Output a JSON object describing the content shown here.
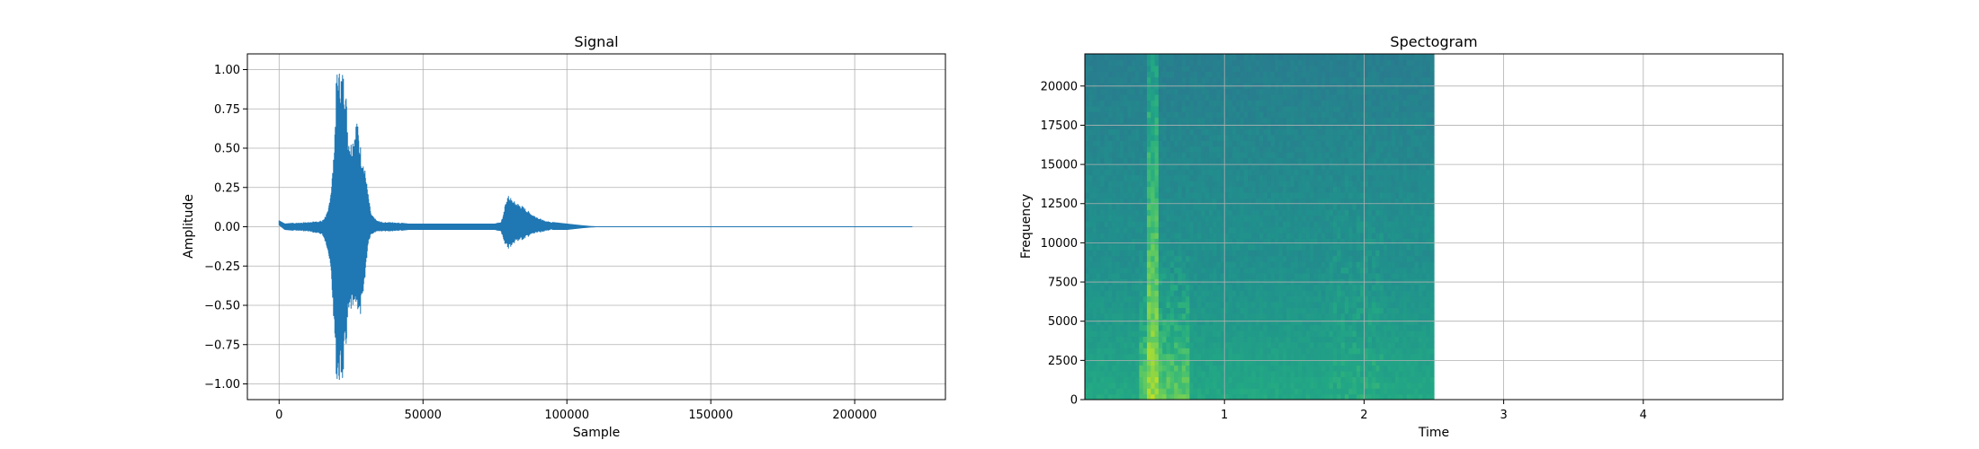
{
  "chart_data": [
    {
      "type": "line",
      "title": "Signal",
      "xlabel": "Sample",
      "ylabel": "Amplitude",
      "xlim": [
        -11025,
        231525
      ],
      "ylim": [
        -1.1,
        1.1
      ],
      "x_ticks": [
        0,
        50000,
        100000,
        150000,
        200000
      ],
      "x_tick_labels": [
        "0",
        "50000",
        "100000",
        "150000",
        "200000"
      ],
      "y_ticks": [
        1.0,
        0.75,
        0.5,
        0.25,
        0.0,
        -0.25,
        -0.5,
        -0.75,
        -1.0
      ],
      "y_tick_labels": [
        "1.00",
        "0.75",
        "0.50",
        "0.25",
        "0.00",
        "−0.25",
        "−0.50",
        "−0.75",
        "−1.00"
      ],
      "grid": true,
      "color": "#1f77b4",
      "series": [
        {
          "envelope": {
            "x": [
              0,
              2000,
              5000,
              10000,
              15000,
              17000,
              18000,
              19000,
              20000,
              21000,
              22000,
              23000,
              24000,
              25000,
              26000,
              27000,
              28000,
              29000,
              30000,
              31000,
              32000,
              34000,
              36000,
              40000,
              45000,
              50000,
              55000,
              60000,
              65000,
              70000,
              75000,
              77000,
              78000,
              79000,
              80000,
              81000,
              82000,
              84000,
              86000,
              88000,
              90000,
              92000,
              95000,
              100000,
              105000,
              108000,
              110000,
              150000,
              200000,
              220000
            ],
            "upper": [
              0.04,
              0.02,
              0.025,
              0.03,
              0.04,
              0.1,
              0.25,
              0.45,
              1.0,
              1.0,
              1.0,
              0.95,
              0.6,
              0.55,
              0.6,
              0.7,
              0.55,
              0.45,
              0.35,
              0.2,
              0.08,
              0.04,
              0.03,
              0.03,
              0.02,
              0.02,
              0.02,
              0.02,
              0.02,
              0.02,
              0.02,
              0.03,
              0.08,
              0.19,
              0.2,
              0.17,
              0.16,
              0.14,
              0.11,
              0.08,
              0.06,
              0.04,
              0.03,
              0.02,
              0.01,
              0.005,
              0.003,
              0.003,
              0.003,
              0.003
            ],
            "lower": [
              0.01,
              -0.02,
              -0.025,
              -0.03,
              -0.05,
              -0.15,
              -0.3,
              -0.6,
              -1.0,
              -1.0,
              -1.0,
              -0.85,
              -0.6,
              -0.55,
              -0.55,
              -0.5,
              -0.6,
              -0.5,
              -0.3,
              -0.1,
              -0.05,
              -0.03,
              -0.03,
              -0.03,
              -0.02,
              -0.02,
              -0.02,
              -0.02,
              -0.02,
              -0.02,
              -0.02,
              -0.03,
              -0.08,
              -0.14,
              -0.14,
              -0.12,
              -0.1,
              -0.09,
              -0.07,
              -0.05,
              -0.04,
              -0.03,
              -0.02,
              -0.02,
              -0.01,
              -0.005,
              -0.003,
              -0.003,
              -0.003,
              -0.003
            ]
          }
        }
      ]
    },
    {
      "type": "heatmap",
      "title": "Spectogram",
      "xlabel": "Time",
      "ylabel": "Frequency",
      "xlim": [
        0,
        5
      ],
      "ylim": [
        0,
        22050
      ],
      "x_ticks": [
        1,
        2,
        3,
        4
      ],
      "x_tick_labels": [
        "1",
        "2",
        "3",
        "4"
      ],
      "y_ticks": [
        0,
        2500,
        5000,
        7500,
        10000,
        12500,
        15000,
        17500,
        20000
      ],
      "y_tick_labels": [
        "0",
        "2500",
        "5000",
        "7500",
        "10000",
        "12500",
        "15000",
        "17500",
        "20000"
      ],
      "grid": true,
      "colormap": "viridis",
      "data_extent_time": [
        0,
        2.5
      ],
      "frequency_max": 22050,
      "events": [
        {
          "time_start": 0.44,
          "time_end": 0.52,
          "freq_top": 22050,
          "intensity": 0.85
        },
        {
          "time_start": 0.4,
          "time_end": 0.75,
          "freq_top": 9500,
          "intensity": 0.75
        },
        {
          "time_start": 1.75,
          "time_end": 2.15,
          "freq_top": 19000,
          "intensity": 0.6
        }
      ]
    }
  ]
}
